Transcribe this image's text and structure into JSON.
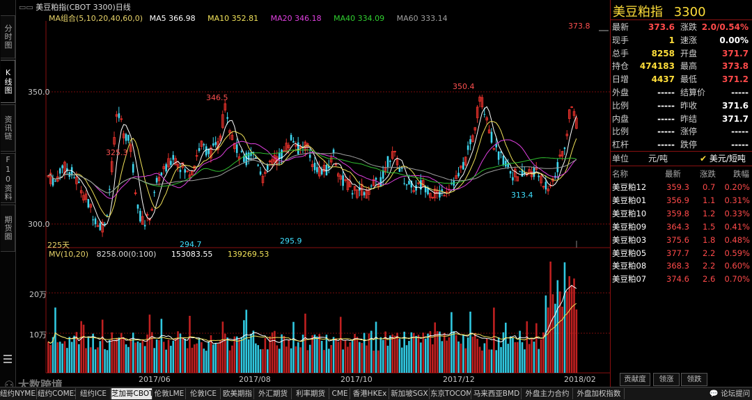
{
  "title_bar": {
    "symbol_title": "美豆粕指(CBOT 3300)日线"
  },
  "left_tabs": [
    {
      "label": "分时图"
    },
    {
      "label": "K线图"
    },
    {
      "label": "资讯链"
    },
    {
      "label": "F10资料"
    },
    {
      "label": "期货圈"
    }
  ],
  "ma_legend": {
    "group": "MA组合(5,10,20,40,60,0)",
    "ma5": "MA5 366.98",
    "ma10": "MA10 352.81",
    "ma20": "MA20 346.18",
    "ma40": "MA40 334.09",
    "ma60": "MA60 333.14"
  },
  "price_axis": {
    "top": "350.0",
    "bottom": "300.0"
  },
  "price_notes": [
    "373.8",
    "350.4",
    "346.5",
    "325.3",
    "313.4",
    "294.7",
    "295.9"
  ],
  "period_label": "225天",
  "volume_legend": {
    "name": "MV(10,20)",
    "value": "8258.00(0:100)",
    "mv10": "153083.55",
    "mv20": "139269.53"
  },
  "volume_axis": {
    "top": "20万",
    "bottom": "10万"
  },
  "date_axis": [
    "2017/06",
    "2017/08",
    "2017/10",
    "2017/12",
    "2018/02"
  ],
  "quote": {
    "name": "美豆粕指",
    "code": "3300",
    "left": [
      {
        "label": "最新",
        "value": "373.6"
      },
      {
        "label": "现手",
        "value": "1"
      },
      {
        "label": "总手",
        "value": "8258"
      },
      {
        "label": "持仓",
        "value": "474183"
      },
      {
        "label": "日增",
        "value": "4437"
      },
      {
        "label": "外盘",
        "value": "-----"
      },
      {
        "label": "比例",
        "value": "-----"
      },
      {
        "label": "内盘",
        "value": "-----"
      },
      {
        "label": "比例",
        "value": "-----"
      },
      {
        "label": "杠杆",
        "value": "-----"
      }
    ],
    "right": [
      {
        "label": "涨跌",
        "value": "2.0/0.54%"
      },
      {
        "label": "速涨",
        "value": "0.00%"
      },
      {
        "label": "开盘",
        "value": "371.7"
      },
      {
        "label": "最高",
        "value": "373.8"
      },
      {
        "label": "最低",
        "value": "371.2"
      },
      {
        "label": "结算价",
        "value": "-----"
      },
      {
        "label": "昨收",
        "value": "371.6"
      },
      {
        "label": "昨结",
        "value": "371.7"
      },
      {
        "label": "涨停",
        "value": "-----"
      },
      {
        "label": "跌停",
        "value": "-----"
      }
    ],
    "unit_label": "单位",
    "unit_a": "元/吨",
    "unit_b": "美元/短吨"
  },
  "contracts": {
    "headers": [
      "名称",
      "最新",
      "涨跌",
      "跌幅"
    ],
    "rows": [
      [
        "美豆粕12",
        "359.3",
        "0.7",
        "0.20%"
      ],
      [
        "美豆粕01",
        "356.9",
        "1.1",
        "0.31%"
      ],
      [
        "美豆粕10",
        "359.8",
        "1.2",
        "0.33%"
      ],
      [
        "美豆粕09",
        "364.3",
        "1.5",
        "0.41%"
      ],
      [
        "美豆粕03",
        "375.6",
        "1.8",
        "0.48%"
      ],
      [
        "美豆粕05",
        "377.7",
        "2.2",
        "0.59%"
      ],
      [
        "美豆粕08",
        "368.3",
        "2.2",
        "0.60%"
      ],
      [
        "美豆粕07",
        "374.6",
        "2.6",
        "0.70%"
      ]
    ]
  },
  "panel_tabs": [
    "贡献度",
    "领涨",
    "领跌"
  ],
  "bottom_tabs": [
    "纽约NYMEX",
    "纽约COMEX",
    "纽约ICE",
    "芝加哥CBOT",
    "伦敦LME",
    "伦敦ICE",
    "欧美期指",
    "外汇期货",
    "利率期货",
    "CME",
    "香港HKEx",
    "新加坡SGX",
    "东京TOCOM",
    "马来西亚BMD",
    "外盘主力合约",
    "外盘加权指数"
  ],
  "forum_link": "论坛提问",
  "watermark": "大数跨境",
  "colors": {
    "up": "#e0302a",
    "down": "#3fd7f0",
    "ma5": "#ffffff",
    "ma10": "#f2e35a",
    "ma20": "#e040e0",
    "ma40": "#30c030",
    "ma60": "#a0a0a0"
  }
}
